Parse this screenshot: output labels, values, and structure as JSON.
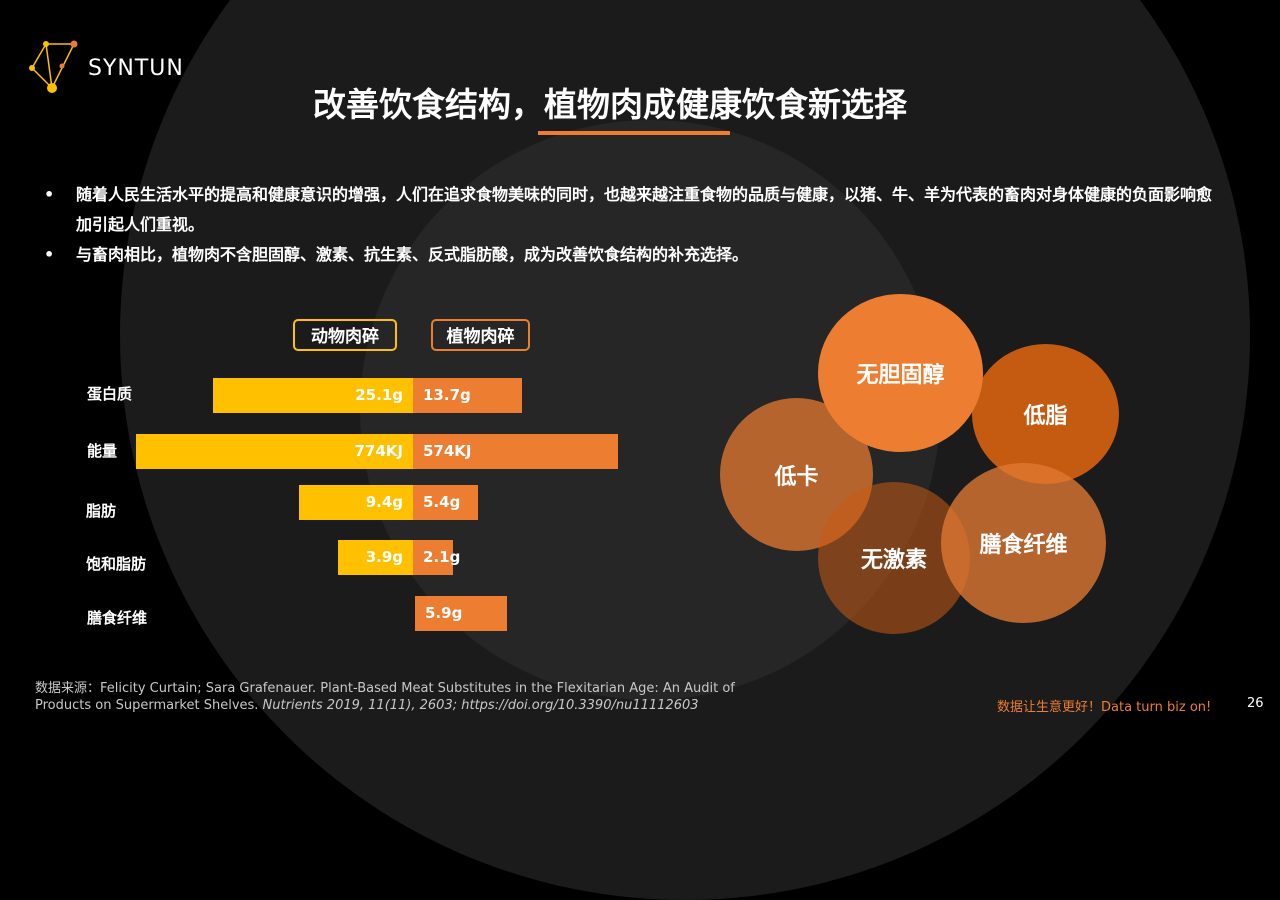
{
  "brand": {
    "name": "SYNTUN",
    "accent": "#ed7d31",
    "animal_color": "#ffc000",
    "plant_color": "#ed7d31"
  },
  "title": "改善饮食结构，植物肉成健康饮食新选择",
  "bullets": [
    "随着人民生活水平的提高和健康意识的增强，人们在追求食物美味的同时，也越来越注重食物的品质与健康，以猪、牛、羊为代表的畜肉对身体健康的负面影响愈加引起人们重视。",
    "与畜肉相比，植物肉不含胆固醇、激素、抗生素、反式脂肪酸，成为改善饮食结构的补充选择。"
  ],
  "chart_data": {
    "type": "bar",
    "orientation": "horizontal-butterfly",
    "categories": [
      "蛋白质",
      "能量",
      "脂肪",
      "饱和脂肪",
      "膳食纤维"
    ],
    "series": [
      {
        "name": "动物肉碎",
        "values": [
          25.1,
          774,
          9.4,
          3.9,
          null
        ],
        "labels": [
          "25.1g",
          "774KJ",
          "9.4g",
          "3.9g",
          ""
        ]
      },
      {
        "name": "植物肉碎",
        "values": [
          13.7,
          574,
          5.4,
          2.1,
          5.9
        ],
        "labels": [
          "13.7g",
          "574KJ",
          "5.4g",
          "2.1g",
          "5.9g"
        ]
      }
    ]
  },
  "bubbles": [
    "无胆固醇",
    "低脂",
    "低卡",
    "无激素",
    "膳食纤维"
  ],
  "source": {
    "prefix": "数据来源：Felicity Curtain; Sara Grafenauer. Plant-Based Meat Substitutes in the Flexitarian Age: An Audit of",
    "line2_plain": "Products on Supermarket Shelves. ",
    "line2_italic": "Nutrients 2019, 11(11), 2603; https://doi.org/10.3390/nu11112603"
  },
  "footer": {
    "slogan": "数据让生意更好！Data turn biz on!",
    "page": "26"
  }
}
